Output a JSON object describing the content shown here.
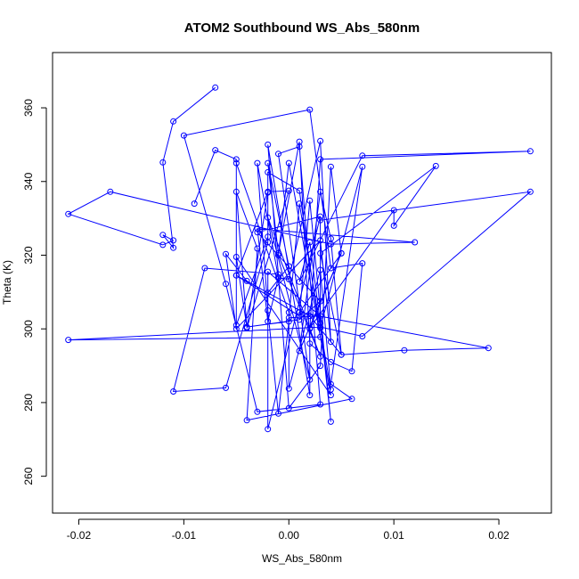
{
  "chart_data": {
    "type": "line",
    "title": "ATOM2 Southbound WS_Abs_580nm",
    "xlabel": "WS_Abs_580nm",
    "ylabel": "Theta (K)",
    "xlim": [
      -0.0225,
      0.025
    ],
    "ylim": [
      250,
      375
    ],
    "xticks": [
      -0.02,
      -0.01,
      0.0,
      0.01,
      0.02
    ],
    "xtick_labels": [
      "-0.02",
      "-0.01",
      "0.00",
      "0.01",
      "0.02"
    ],
    "yticks": [
      260,
      280,
      300,
      320,
      340,
      360
    ],
    "ytick_labels": [
      "260",
      "280",
      "300",
      "320",
      "340",
      "360"
    ],
    "grid": false,
    "color": "#0000ff",
    "points": [
      {
        "x": -0.007,
        "y": 365.5
      },
      {
        "x": -0.011,
        "y": 356.3
      },
      {
        "x": -0.012,
        "y": 345.2
      },
      {
        "x": -0.011,
        "y": 322.0
      },
      {
        "x": -0.012,
        "y": 325.5
      },
      {
        "x": -0.011,
        "y": 324.0
      },
      {
        "x": -0.012,
        "y": 322.8
      },
      {
        "x": -0.021,
        "y": 331.2
      },
      {
        "x": -0.017,
        "y": 337.2
      },
      {
        "x": 0.004,
        "y": 323.0
      },
      {
        "x": 0.012,
        "y": 323.5
      },
      {
        "x": -0.003,
        "y": 327.2
      },
      {
        "x": -0.002,
        "y": 302.0
      },
      {
        "x": -0.001,
        "y": 313.8
      },
      {
        "x": 0.0,
        "y": 313.5
      },
      {
        "x": 0.003,
        "y": 351.0
      },
      {
        "x": 0.004,
        "y": 296.5
      },
      {
        "x": 0.003,
        "y": 324.0
      },
      {
        "x": -0.005,
        "y": 300.0
      },
      {
        "x": -0.006,
        "y": 320.3
      },
      {
        "x": -0.004,
        "y": 313.0
      },
      {
        "x": -0.002,
        "y": 309.8
      },
      {
        "x": 0.0,
        "y": 317.0
      },
      {
        "x": -0.002,
        "y": 345.0
      },
      {
        "x": -0.001,
        "y": 320.5
      },
      {
        "x": 0.001,
        "y": 350.8
      },
      {
        "x": 0.002,
        "y": 296.0
      },
      {
        "x": 0.004,
        "y": 291.0
      },
      {
        "x": 0.006,
        "y": 288.5
      },
      {
        "x": 0.007,
        "y": 317.8
      },
      {
        "x": 0.004,
        "y": 316.5
      },
      {
        "x": 0.002,
        "y": 359.5
      },
      {
        "x": -0.01,
        "y": 352.5
      },
      {
        "x": -0.006,
        "y": 312.2
      },
      {
        "x": -0.003,
        "y": 277.5
      },
      {
        "x": 0.003,
        "y": 279.5
      },
      {
        "x": 0.001,
        "y": 349.5
      },
      {
        "x": -0.001,
        "y": 347.5
      },
      {
        "x": 0.002,
        "y": 286.2
      },
      {
        "x": -0.002,
        "y": 330.2
      },
      {
        "x": 0.003,
        "y": 292.5
      },
      {
        "x": -0.001,
        "y": 320.0
      },
      {
        "x": 0.0,
        "y": 345.0
      },
      {
        "x": 0.004,
        "y": 282.0
      },
      {
        "x": -0.005,
        "y": 319.5
      },
      {
        "x": -0.004,
        "y": 300.5
      },
      {
        "x": 0.001,
        "y": 302.5
      },
      {
        "x": 0.003,
        "y": 307.5
      },
      {
        "x": -0.003,
        "y": 326.2
      },
      {
        "x": 0.003,
        "y": 330.5
      },
      {
        "x": -0.002,
        "y": 272.8
      },
      {
        "x": -0.002,
        "y": 315.5
      },
      {
        "x": 0.003,
        "y": 303.5
      },
      {
        "x": 0.0,
        "y": 303.0
      },
      {
        "x": 0.001,
        "y": 334.0
      },
      {
        "x": 0.004,
        "y": 283.5
      },
      {
        "x": 0.003,
        "y": 316.0
      },
      {
        "x": 0.0,
        "y": 283.8
      },
      {
        "x": 0.0,
        "y": 304.5
      },
      {
        "x": -0.005,
        "y": 345.0
      },
      {
        "x": -0.005,
        "y": 314.5
      },
      {
        "x": 0.001,
        "y": 303.5
      },
      {
        "x": 0.002,
        "y": 334.8
      },
      {
        "x": 0.004,
        "y": 274.8
      },
      {
        "x": 0.003,
        "y": 301.5
      },
      {
        "x": 0.002,
        "y": 323.5
      },
      {
        "x": 0.001,
        "y": 312.8
      },
      {
        "x": 0.007,
        "y": 347.0
      },
      {
        "x": 0.023,
        "y": 348.2
      },
      {
        "x": 0.003,
        "y": 346.0
      },
      {
        "x": 0.002,
        "y": 300.0
      },
      {
        "x": 0.002,
        "y": 282.0
      },
      {
        "x": -0.002,
        "y": 350.0
      },
      {
        "x": -0.001,
        "y": 314.8
      },
      {
        "x": -0.008,
        "y": 316.5
      },
      {
        "x": -0.011,
        "y": 283.0
      },
      {
        "x": -0.006,
        "y": 284.0
      },
      {
        "x": -0.002,
        "y": 323.5
      },
      {
        "x": -0.002,
        "y": 342.5
      },
      {
        "x": 0.001,
        "y": 337.5
      },
      {
        "x": 0.003,
        "y": 297.8
      },
      {
        "x": -0.021,
        "y": 297.0
      },
      {
        "x": 0.003,
        "y": 300.5
      },
      {
        "x": 0.007,
        "y": 298.0
      },
      {
        "x": 0.023,
        "y": 337.2
      },
      {
        "x": 0.003,
        "y": 329.5
      },
      {
        "x": 0.003,
        "y": 300.2
      },
      {
        "x": 0.007,
        "y": 344.0
      },
      {
        "x": 0.004,
        "y": 285.0
      },
      {
        "x": 0.006,
        "y": 281.0
      },
      {
        "x": -0.004,
        "y": 275.2
      },
      {
        "x": -0.003,
        "y": 321.8
      },
      {
        "x": -0.005,
        "y": 337.2
      },
      {
        "x": -0.004,
        "y": 300.5
      },
      {
        "x": 0.0,
        "y": 302.0
      },
      {
        "x": -0.001,
        "y": 277.0
      },
      {
        "x": -0.002,
        "y": 305.0
      },
      {
        "x": -0.003,
        "y": 345.0
      },
      {
        "x": -0.001,
        "y": 314.0
      },
      {
        "x": 0.0,
        "y": 278.5
      },
      {
        "x": 0.003,
        "y": 290.0
      },
      {
        "x": 0.004,
        "y": 344.0
      },
      {
        "x": 0.005,
        "y": 320.5
      },
      {
        "x": 0.001,
        "y": 294.0
      },
      {
        "x": 0.003,
        "y": 337.2
      },
      {
        "x": 0.004,
        "y": 324.5
      },
      {
        "x": 0.005,
        "y": 293.0
      },
      {
        "x": 0.003,
        "y": 320.5
      },
      {
        "x": 0.014,
        "y": 344.2
      },
      {
        "x": 0.01,
        "y": 328.0
      },
      {
        "x": 0.01,
        "y": 332.2
      },
      {
        "x": 0.002,
        "y": 300.2
      },
      {
        "x": 0.005,
        "y": 320.5
      },
      {
        "x": 0.001,
        "y": 304.5
      },
      {
        "x": 0.019,
        "y": 294.8
      },
      {
        "x": 0.011,
        "y": 294.2
      },
      {
        "x": 0.005,
        "y": 293.0
      },
      {
        "x": 0.002,
        "y": 303.5
      },
      {
        "x": -0.005,
        "y": 314.5
      },
      {
        "x": -0.002,
        "y": 337.2
      },
      {
        "x": 0.0,
        "y": 337.5
      },
      {
        "x": -0.004,
        "y": 300.2
      },
      {
        "x": -0.002,
        "y": 337.0
      },
      {
        "x": -0.002,
        "y": 325.0
      },
      {
        "x": -0.005,
        "y": 301.0
      },
      {
        "x": -0.005,
        "y": 346.0
      },
      {
        "x": -0.007,
        "y": 348.5
      },
      {
        "x": -0.009,
        "y": 334.0
      }
    ]
  }
}
